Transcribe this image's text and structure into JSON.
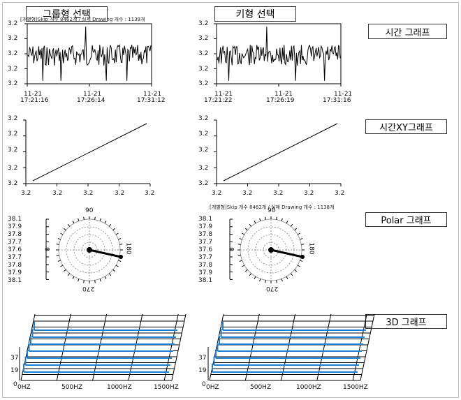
{
  "buttons": {
    "left_top": "그룹형 선택",
    "right_top": "키형 선택",
    "time_graph": "시간 그래프",
    "time_xy_graph": "시간XY그래프",
    "polar_graph": "Polar 그래프",
    "graph_3d": "3D 그래프"
  },
  "status": {
    "left": "[개별형]Skip 개수 8462개 / 실제 Drawing 개수 : 1139개",
    "right": "[개별형]Skip 개수 8462개 / 실제 Drawing 개수 : 1138개"
  },
  "time_chart": {
    "y_labels": [
      "3.2",
      "3.2",
      "3.2",
      "3.2",
      "3.2"
    ],
    "left_x": [
      {
        "top": "11-21",
        "bottom": "17:21:16"
      },
      {
        "top": "11-21",
        "bottom": "17:26:14"
      },
      {
        "top": "11-21",
        "bottom": "17:31:12"
      }
    ],
    "right_x": [
      {
        "top": "11-21",
        "bottom": "17:21:22"
      },
      {
        "top": "11-21",
        "bottom": "17:26:19"
      },
      {
        "top": "11-21",
        "bottom": "17:31:16"
      }
    ]
  },
  "xy_chart": {
    "y_labels": [
      "3.2",
      "3.2",
      "3.2",
      "3.2",
      "3.2"
    ],
    "x_labels": [
      "3.2",
      "3.2",
      "3.2",
      "3.2",
      "3.2"
    ]
  },
  "polar_chart": {
    "r_labels": [
      "38.1",
      "37.9",
      "37.8",
      "37.7",
      "37.6",
      "37.7",
      "37.8",
      "37.9",
      "38.1"
    ],
    "angle_labels": {
      "top": "90",
      "left": "0",
      "right": "180",
      "bottom": "270"
    }
  },
  "chart_3d": {
    "y_labels": [
      "37",
      "19",
      "0"
    ],
    "x_labels": [
      "0HZ",
      "500HZ",
      "1000HZ",
      "1500HZ"
    ]
  },
  "colors": {
    "line": "#000000",
    "accent_blue": "#1e7fd0",
    "grid_gray": "#9a9a9a"
  }
}
